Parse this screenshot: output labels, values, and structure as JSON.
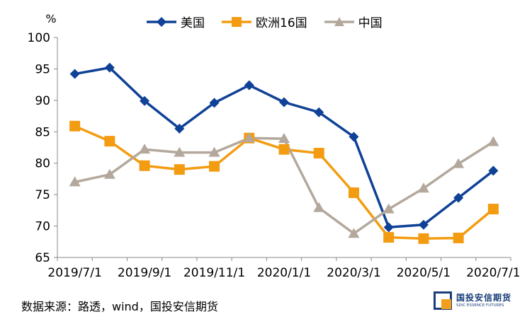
{
  "chart_data": {
    "type": "line",
    "ylabel": "%",
    "ylim": [
      65,
      100
    ],
    "yticks": [
      65,
      70,
      75,
      80,
      85,
      90,
      95,
      100
    ],
    "xtick_labels": [
      "2019/7/1",
      "2019/9/1",
      "2019/11/1",
      "2020/1/1",
      "2020/3/1",
      "2020/5/1",
      "2020/7/1"
    ],
    "categories": [
      "2019/7",
      "2019/8",
      "2019/9",
      "2019/10",
      "2019/11",
      "2019/12",
      "2020/1",
      "2020/2",
      "2020/3",
      "2020/4",
      "2020/5",
      "2020/6",
      "2020/7"
    ],
    "series": [
      {
        "name": "美国",
        "color": "#0f4196",
        "marker": "diamond",
        "values": [
          94.2,
          95.2,
          89.9,
          85.5,
          89.6,
          92.4,
          89.7,
          88.1,
          84.2,
          69.8,
          70.2,
          74.5,
          78.8
        ]
      },
      {
        "name": "欧洲16国",
        "color": "#f39c12",
        "marker": "square",
        "values": [
          85.9,
          83.5,
          79.6,
          79.0,
          79.5,
          84.0,
          82.2,
          81.6,
          75.3,
          68.2,
          68.0,
          68.1,
          72.7
        ]
      },
      {
        "name": "中国",
        "color": "#b3a89b",
        "marker": "triangle",
        "values": [
          77.0,
          78.2,
          82.2,
          81.7,
          81.7,
          84.0,
          83.9,
          72.9,
          68.8,
          72.7,
          76.0,
          79.9,
          83.4
        ]
      }
    ],
    "grid": false,
    "legend_position": "top"
  },
  "footer": {
    "source": "数据来源：路透，wind，国投安信期货",
    "logo_cn": "国投安信期货",
    "logo_en": "SDIC ESSENCE FUTURES"
  }
}
